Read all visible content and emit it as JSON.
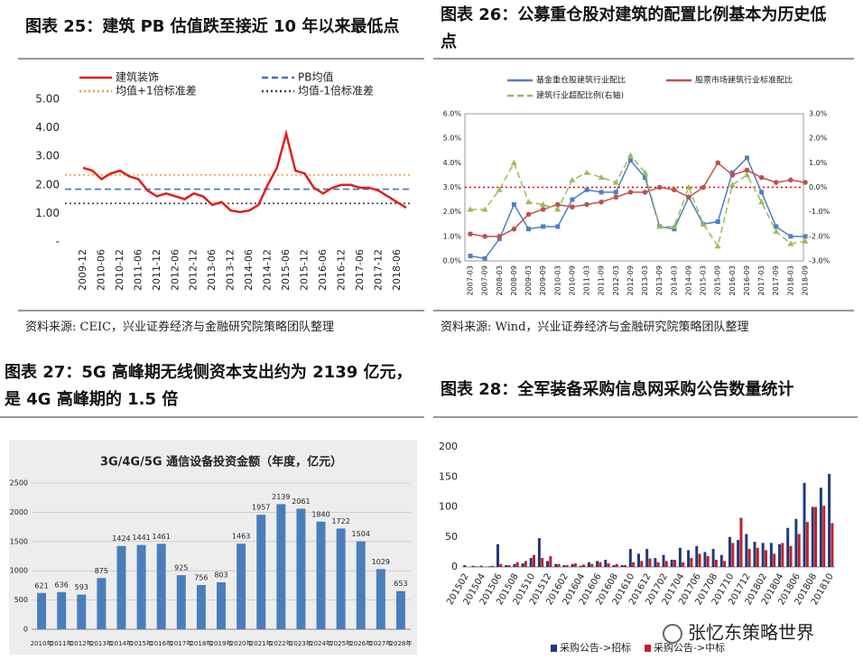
{
  "chart_data": [
    {
      "type": "line",
      "title": "图表 25：建筑 PB 估值跌至接近 10 年以来最低点",
      "source": "资料来源: CEIC，兴业证券经济与金融研究院策略团队整理",
      "categories": [
        "2009-12",
        null,
        "2010-06",
        null,
        "2010-12",
        null,
        "2011-06",
        null,
        "2011-12",
        null,
        "2012-06",
        null,
        "2012-12",
        null,
        "2013-06",
        null,
        "2013-12",
        null,
        "2014-06",
        null,
        "2014-12",
        null,
        "2015-06",
        null,
        "2015-12",
        null,
        "2016-06",
        null,
        "2016-12",
        null,
        "2017-06",
        null,
        "2017-12",
        null,
        "2018-06",
        null
      ],
      "series": [
        {
          "name": "建筑装饰",
          "color": "#e0201b",
          "style": "solid",
          "values": [
            2.6,
            2.5,
            2.2,
            2.4,
            2.5,
            2.3,
            2.2,
            1.8,
            1.6,
            1.7,
            1.6,
            1.5,
            1.7,
            1.6,
            1.3,
            1.4,
            1.1,
            1.05,
            1.1,
            1.3,
            2.0,
            2.6,
            3.8,
            2.5,
            2.4,
            1.9,
            1.7,
            1.9,
            2.0,
            2.0,
            1.9,
            1.9,
            1.8,
            1.6,
            1.4,
            1.2
          ]
        }
      ],
      "reference_lines": [
        {
          "name": "PB均值",
          "color": "#4472c4",
          "style": "dashed",
          "value": 1.85
        },
        {
          "name": "均值+1倍标准差",
          "color": "#ed9a3b",
          "style": "dotted",
          "value": 2.35
        },
        {
          "name": "均值-1倍标准差",
          "color": "#404040",
          "style": "dotted",
          "value": 1.35
        }
      ],
      "ylim": [
        0,
        5
      ],
      "yticks": [
        {
          "value": 0,
          "label": "-"
        },
        {
          "value": 1,
          "label": "1.00"
        },
        {
          "value": 2,
          "label": "2.00"
        },
        {
          "value": 3,
          "label": "3.00"
        },
        {
          "value": 4,
          "label": "4.00"
        },
        {
          "value": 5,
          "label": "5.00"
        }
      ],
      "grid": false
    },
    {
      "type": "line",
      "title": "图表 26：公募重仓股对建筑的配置比例基本为历史低点",
      "source": "资料来源: Wind，兴业证券经济与金融研究院策略团队整理",
      "categories": [
        "2007-03",
        "2007-09",
        "2008-03",
        "2008-09",
        "2009-03",
        "2009-09",
        "2010-03",
        "2010-09",
        "2011-03",
        "2011-09",
        "2012-03",
        "2012-09",
        "2013-03",
        "2013-09",
        "2014-03",
        "2014-09",
        "2015-03",
        "2015-09",
        "2016-03",
        "2016-09",
        "2017-03",
        "2017-09",
        "2018-03",
        "2018-09"
      ],
      "series": [
        {
          "name": "基金重仓股建筑行业配比",
          "color": "#4f7fbf",
          "style": "solid",
          "marker": "square",
          "values": [
            0.2,
            0.1,
            0.9,
            2.3,
            1.3,
            1.4,
            1.4,
            2.5,
            2.9,
            2.8,
            2.8,
            4.1,
            3.4,
            1.4,
            1.3,
            2.6,
            1.5,
            1.6,
            3.6,
            4.2,
            2.8,
            1.4,
            1.0,
            1.0
          ]
        },
        {
          "name": "股票市场建筑行业标准配比",
          "color": "#c0504d",
          "style": "solid",
          "marker": "circle",
          "values": [
            1.1,
            1.0,
            1.0,
            1.3,
            1.9,
            2.1,
            2.3,
            2.2,
            2.3,
            2.4,
            2.6,
            2.8,
            2.8,
            3.0,
            2.9,
            2.6,
            3.0,
            4.0,
            3.5,
            3.7,
            3.4,
            3.2,
            3.3,
            3.2
          ]
        },
        {
          "name": "建筑行业超配比例(右轴)",
          "color": "#9bbb59",
          "style": "dashed",
          "marker": "triangle",
          "axis": "y2",
          "values": [
            -0.9,
            -0.9,
            -0.1,
            1.0,
            -0.6,
            -0.7,
            -0.9,
            0.3,
            0.6,
            0.4,
            0.2,
            1.3,
            0.6,
            -1.6,
            -1.6,
            0.0,
            -1.5,
            -2.4,
            0.1,
            0.5,
            -0.6,
            -1.8,
            -2.3,
            -2.2
          ]
        }
      ],
      "reference_lines": [
        {
          "color": "#e00000",
          "style": "dotted",
          "value": 0,
          "axis": "y2"
        }
      ],
      "ylim": [
        0,
        6
      ],
      "yticks": [
        {
          "value": 0,
          "label": "0.0%"
        },
        {
          "value": 1,
          "label": "1.0%"
        },
        {
          "value": 2,
          "label": "2.0%"
        },
        {
          "value": 3,
          "label": "3.0%"
        },
        {
          "value": 4,
          "label": "4.0%"
        },
        {
          "value": 5,
          "label": "5.0%"
        },
        {
          "value": 6,
          "label": "6.0%"
        }
      ],
      "y2lim": [
        -3,
        3
      ],
      "y2ticks": [
        {
          "value": -3,
          "label": "-3.0%"
        },
        {
          "value": -2,
          "label": "-2.0%"
        },
        {
          "value": -1,
          "label": "-1.0%"
        },
        {
          "value": 0,
          "label": "0.0%"
        },
        {
          "value": 1,
          "label": "1.0%"
        },
        {
          "value": 2,
          "label": "2.0%"
        },
        {
          "value": 3,
          "label": "3.0%"
        }
      ],
      "grid": false
    },
    {
      "type": "bar",
      "title": "图表 27：5G 高峰期无线侧资本支出约为 2139 亿元，是 4G 高峰期的 1.5 倍",
      "subtitle": "3G/4G/5G 通信设备投资金额（年度，亿元）",
      "categories": [
        "2010年",
        "2011年",
        "2012年",
        "2013年",
        "2014年",
        "2015年",
        "2016年",
        "2017年",
        "2018年",
        "2019年",
        "2020年",
        "2021年",
        "2022年",
        "2023年",
        "2024年",
        "2025年",
        "2026年",
        "2027年",
        "2028年"
      ],
      "values": [
        621,
        636,
        593,
        875,
        1424,
        1441,
        1461,
        925,
        756,
        803,
        1463,
        1957,
        2139,
        2061,
        1840,
        1722,
        1504,
        1029,
        653
      ],
      "color": "#4a7ebb",
      "ylim": [
        0,
        2500
      ],
      "yticks": [
        0,
        500,
        1000,
        1500,
        2000,
        2500
      ],
      "grid": true
    },
    {
      "type": "bar",
      "title": "图表 28：全军装备采购信息网采购公告数量统计",
      "categories": [
        "201502",
        null,
        "201504",
        null,
        "201506",
        null,
        "201508",
        null,
        "201510",
        null,
        "201512",
        null,
        "201602",
        null,
        "201604",
        null,
        "201606",
        null,
        "201608",
        null,
        "201610",
        null,
        "201612",
        null,
        "201702",
        null,
        "201704",
        null,
        "201706",
        null,
        "201708",
        null,
        "201710",
        null,
        "201712",
        null,
        "201802",
        null,
        "201804",
        null,
        "201806",
        null,
        "201808",
        null,
        "201810"
      ],
      "series": [
        {
          "name": "采购公告->招标",
          "color": "#1f3a7a",
          "values": [
            3,
            2,
            2,
            1,
            38,
            3,
            5,
            6,
            15,
            48,
            10,
            5,
            3,
            5,
            2,
            8,
            10,
            12,
            3,
            3,
            30,
            22,
            30,
            15,
            20,
            12,
            32,
            28,
            35,
            25,
            30,
            20,
            50,
            45,
            55,
            42,
            40,
            40,
            38,
            65,
            80,
            140,
            100,
            132,
            155
          ]
        },
        {
          "name": "采购公告->中标",
          "color": "#c0202a",
          "values": [
            0,
            1,
            0,
            2,
            5,
            3,
            8,
            10,
            20,
            15,
            18,
            5,
            3,
            6,
            4,
            5,
            8,
            6,
            5,
            3,
            8,
            10,
            14,
            8,
            10,
            12,
            8,
            15,
            22,
            18,
            12,
            10,
            40,
            82,
            30,
            32,
            28,
            22,
            40,
            35,
            55,
            75,
            100,
            102,
            73
          ]
        }
      ],
      "ylim": [
        0,
        200
      ],
      "yticks": [
        0,
        50,
        100,
        150,
        200
      ],
      "grid": false
    }
  ],
  "watermark": "张忆东策略世界"
}
